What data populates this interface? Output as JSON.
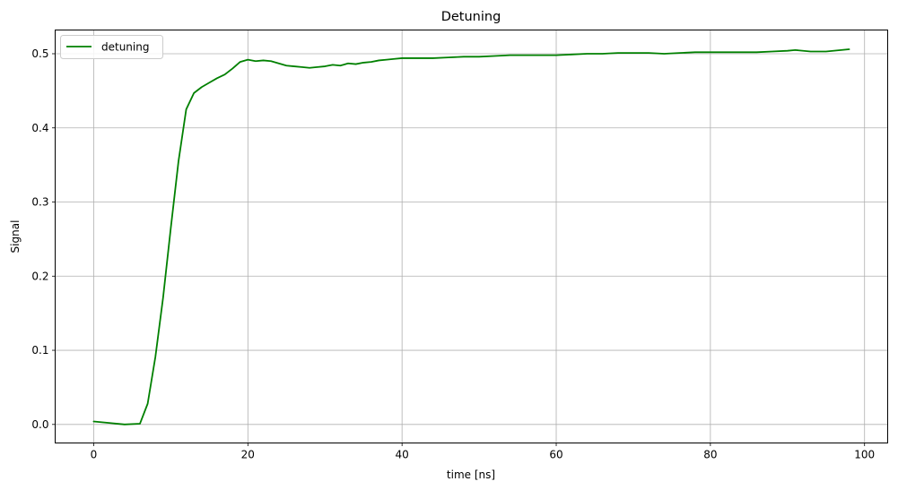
{
  "chart_data": {
    "type": "line",
    "title": "Detuning",
    "xlabel": "time [ns]",
    "ylabel": "Signal",
    "xlim": [
      -5,
      103
    ],
    "ylim": [
      -0.025,
      0.532
    ],
    "xticks": [
      0,
      20,
      40,
      60,
      80,
      100
    ],
    "yticks": [
      0.0,
      0.1,
      0.2,
      0.3,
      0.4,
      0.5
    ],
    "xtick_labels": [
      "0",
      "20",
      "40",
      "60",
      "80",
      "100"
    ],
    "ytick_labels": [
      "0.0",
      "0.1",
      "0.2",
      "0.3",
      "0.4",
      "0.5"
    ],
    "grid": true,
    "legend": "top-left",
    "series": [
      {
        "name": "detuning",
        "color": "#008000",
        "x": [
          0,
          2,
          4,
          6,
          7,
          8,
          9,
          10,
          11,
          12,
          13,
          14,
          15,
          16,
          17,
          18,
          19,
          20,
          21,
          22,
          23,
          24,
          25,
          26,
          27,
          28,
          29,
          30,
          31,
          32,
          33,
          34,
          35,
          36,
          37,
          38,
          39,
          40,
          42,
          44,
          46,
          48,
          50,
          52,
          54,
          56,
          58,
          60,
          62,
          64,
          66,
          68,
          70,
          72,
          74,
          76,
          78,
          80,
          82,
          84,
          86,
          88,
          90,
          91,
          93,
          95,
          98
        ],
        "y": [
          0.004,
          0.002,
          0.0,
          0.001,
          0.028,
          0.091,
          0.171,
          0.265,
          0.355,
          0.425,
          0.447,
          0.455,
          0.461,
          0.467,
          0.472,
          0.48,
          0.489,
          0.492,
          0.49,
          0.491,
          0.49,
          0.487,
          0.484,
          0.483,
          0.482,
          0.481,
          0.482,
          0.483,
          0.485,
          0.484,
          0.487,
          0.486,
          0.488,
          0.489,
          0.491,
          0.492,
          0.493,
          0.494,
          0.494,
          0.494,
          0.495,
          0.496,
          0.496,
          0.497,
          0.498,
          0.498,
          0.498,
          0.498,
          0.499,
          0.5,
          0.5,
          0.501,
          0.501,
          0.501,
          0.5,
          0.501,
          0.502,
          0.502,
          0.502,
          0.502,
          0.502,
          0.503,
          0.504,
          0.505,
          0.503,
          0.503,
          0.506
        ]
      }
    ]
  }
}
